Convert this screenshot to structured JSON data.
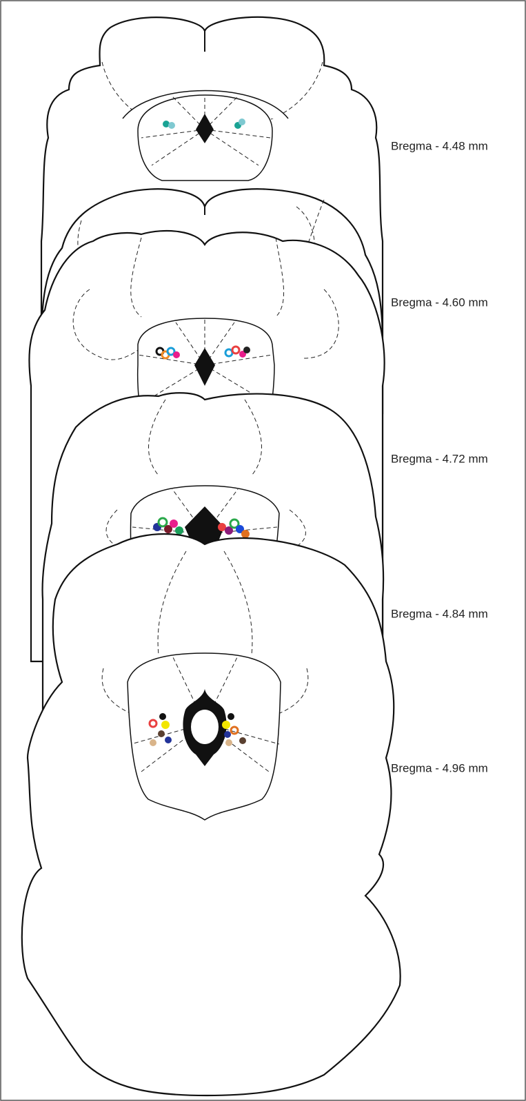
{
  "sections": [
    {
      "label": "Bregma - 4.48 mm"
    },
    {
      "label": "Bregma - 4.60 mm"
    },
    {
      "label": "Bregma - 4.72 mm"
    },
    {
      "label": "Bregma - 4.84 mm"
    },
    {
      "label": "Bregma - 4.96 mm"
    }
  ]
}
